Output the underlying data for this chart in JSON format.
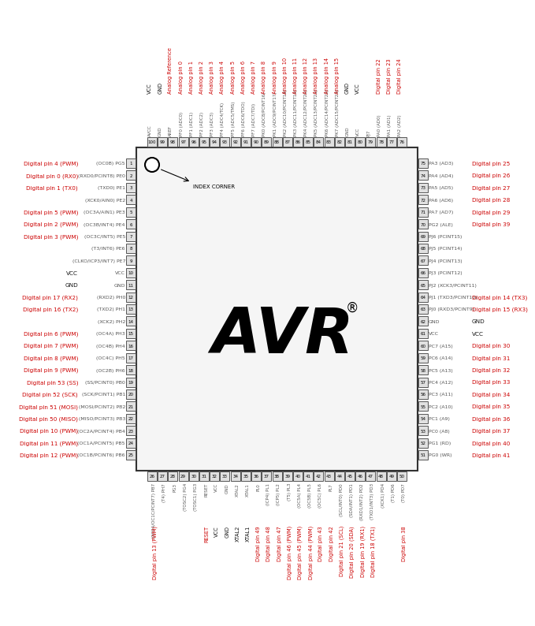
{
  "chip_color": "#f5f5f5",
  "chip_border": "#333333",
  "pin_box_color": "#e0e0e0",
  "pin_box_border": "#555555",
  "red_color": "#cc0000",
  "black_color": "#111111",
  "gray_color": "#555555",
  "top_pins": [
    {
      "num": "100",
      "inner": "AVCC",
      "outer": "VCC",
      "red": false
    },
    {
      "num": "99",
      "inner": "GND",
      "outer": "GND",
      "red": false
    },
    {
      "num": "98",
      "inner": "AREF",
      "outer": "Analog Reference",
      "red": true
    },
    {
      "num": "97",
      "inner": "PF0 (ADC0)",
      "outer": "Analog pin 0",
      "red": true
    },
    {
      "num": "96",
      "inner": "PF1 (ADC1)",
      "outer": "Analog pin 1",
      "red": true
    },
    {
      "num": "95",
      "inner": "PF2 (ADC2)",
      "outer": "Analog pin 2",
      "red": true
    },
    {
      "num": "94",
      "inner": "PF3 (ADC3)",
      "outer": "Analog pin 3",
      "red": true
    },
    {
      "num": "93",
      "inner": "PF4 (ADC4/TCK)",
      "outer": "Analog pin 4",
      "red": true
    },
    {
      "num": "92",
      "inner": "PF5 (ADC5/TMS)",
      "outer": "Analog pin 5",
      "red": true
    },
    {
      "num": "91",
      "inner": "PF6 (ADC6/TDO)",
      "outer": "Analog pin 6",
      "red": true
    },
    {
      "num": "90",
      "inner": "PF7 (ADC7/TDI)",
      "outer": "Analog pin 7",
      "red": true
    },
    {
      "num": "89",
      "inner": "PK0 (ADC8/PCINT16)",
      "outer": "Analog pin 8",
      "red": true
    },
    {
      "num": "88",
      "inner": "PK1 (ADC9/PCINT17)",
      "outer": "Analog pin 9",
      "red": true
    },
    {
      "num": "87",
      "inner": "PK2 (ADC10/PCINT18)",
      "outer": "Analog pin 10",
      "red": true
    },
    {
      "num": "86",
      "inner": "PK3 (ADC11/PCINT19)",
      "outer": "Analog pin 11",
      "red": true
    },
    {
      "num": "85",
      "inner": "PK4 (ADC12/PCINT20)",
      "outer": "Analog pin 12",
      "red": true
    },
    {
      "num": "84",
      "inner": "PK5 (ADC13/PCINT21)",
      "outer": "Analog pin 13",
      "red": true
    },
    {
      "num": "83",
      "inner": "PK6 (ADC14/PCINT22)",
      "outer": "Analog pin 14",
      "red": true
    },
    {
      "num": "82",
      "inner": "PK7 (ADC15/PCINT23)",
      "outer": "Analog pin 15",
      "red": true
    },
    {
      "num": "81",
      "inner": "GND",
      "outer": "GND",
      "red": false
    },
    {
      "num": "80",
      "inner": "VCC",
      "outer": "VCC",
      "red": false
    },
    {
      "num": "79",
      "inner": "PJ7",
      "outer": "",
      "red": false
    },
    {
      "num": "78",
      "inner": "PA0 (AD0)",
      "outer": "Digital pin 22",
      "red": true
    },
    {
      "num": "77",
      "inner": "PA1 (AD1)",
      "outer": "Digital pin 23",
      "red": true
    },
    {
      "num": "76",
      "inner": "PA2 (AD2)",
      "outer": "Digital pin 24",
      "red": true
    }
  ],
  "bottom_pins": [
    {
      "num": "26",
      "inner": "(OC0A/OC1C/PCINT7) PB7",
      "outer": "Digital pin 13 (PWM)",
      "red": true
    },
    {
      "num": "27",
      "inner": "(T4) PH7",
      "outer": "",
      "red": false
    },
    {
      "num": "28",
      "inner": "PG3",
      "outer": "",
      "red": false
    },
    {
      "num": "29",
      "inner": "(TOSC2) PG4",
      "outer": "",
      "red": false
    },
    {
      "num": "30",
      "inner": "(TOSC1) PG3",
      "outer": "",
      "red": false
    },
    {
      "num": "31",
      "inner": "RESET",
      "outer": "RESET",
      "red": true
    },
    {
      "num": "32",
      "inner": "VCC",
      "outer": "VCC",
      "red": false
    },
    {
      "num": "33",
      "inner": "GND",
      "outer": "GND",
      "red": false
    },
    {
      "num": "34",
      "inner": "XTAL2",
      "outer": "XTAL2",
      "red": false
    },
    {
      "num": "35",
      "inner": "XTAL1",
      "outer": "XTAL1",
      "red": false
    },
    {
      "num": "36",
      "inner": "PL0",
      "outer": "Digital pin 49",
      "red": true
    },
    {
      "num": "37",
      "inner": "(ICP4) PL1",
      "outer": "Digital pin 48",
      "red": true
    },
    {
      "num": "38",
      "inner": "(ICP5) PL2",
      "outer": "Digital pin 47",
      "red": true
    },
    {
      "num": "39",
      "inner": "(T5) PL3",
      "outer": "Digital pin 46 (PWM)",
      "red": true
    },
    {
      "num": "40",
      "inner": "(OC5A) PL4",
      "outer": "Digital pin 45 (PWM)",
      "red": true
    },
    {
      "num": "41",
      "inner": "(OC5B) PL5",
      "outer": "Digital pin 44 (PWM)",
      "red": true
    },
    {
      "num": "42",
      "inner": "(OC5C) PL6",
      "outer": "Digital pin 43",
      "red": true
    },
    {
      "num": "43",
      "inner": "PL7",
      "outer": "Digital pin 42",
      "red": true
    },
    {
      "num": "44",
      "inner": "(SCL/INT0) PD0",
      "outer": "Digital pin 21 (SCL)",
      "red": true
    },
    {
      "num": "45",
      "inner": "(SDA/INT1) PD1",
      "outer": "Digital pin 20 (SDA)",
      "red": true
    },
    {
      "num": "46",
      "inner": "(RXD1/INT2) PD2",
      "outer": "Digital pin 19 (RX1)",
      "red": true
    },
    {
      "num": "47",
      "inner": "(TXD1/INT3) PD3",
      "outer": "Digital pin 18 (TX1)",
      "red": true
    },
    {
      "num": "48",
      "inner": "(XCK1) PD4",
      "outer": "",
      "red": false
    },
    {
      "num": "49",
      "inner": "(T1) PD6",
      "outer": "",
      "red": false
    },
    {
      "num": "50",
      "inner": "(T0) PD7",
      "outer": "Digital pin 38",
      "red": true
    }
  ],
  "left_pins": [
    {
      "num": "1",
      "inner": "(OC0B) PG5",
      "outer": "Digital pin 4 (PWM)",
      "red": true
    },
    {
      "num": "2",
      "inner": "(RXD0/PCINT8) PE0",
      "outer": "Digital pin 0 (RX0)",
      "red": true
    },
    {
      "num": "3",
      "inner": "(TXD0) PE1",
      "outer": "Digital pin 1 (TX0)",
      "red": true
    },
    {
      "num": "4",
      "inner": "(XCK0/AIN0) PE2",
      "outer": "",
      "red": false
    },
    {
      "num": "5",
      "inner": "(OC3A/AIN1) PE3",
      "outer": "Digital pin 5 (PWM)",
      "red": true
    },
    {
      "num": "6",
      "inner": "(OC3B/INT4) PE4",
      "outer": "Digital pin 2 (PWM)",
      "red": true
    },
    {
      "num": "7",
      "inner": "(OC3C/INT5) PE5",
      "outer": "Digital pin 3 (PWM)",
      "red": true
    },
    {
      "num": "8",
      "inner": "(T3/INT6) PE6",
      "outer": "",
      "red": false
    },
    {
      "num": "9",
      "inner": "(CLKO/ICP3/INT7) PE7",
      "outer": "",
      "red": false
    },
    {
      "num": "10",
      "inner": "VCC",
      "outer": "VCC",
      "red": false
    },
    {
      "num": "11",
      "inner": "GND",
      "outer": "GND",
      "red": false
    },
    {
      "num": "12",
      "inner": "(RXD2) PH0",
      "outer": "Digital pin 17 (RX2)",
      "red": true
    },
    {
      "num": "13",
      "inner": "(TXD2) PH1",
      "outer": "Digital pin 16 (TX2)",
      "red": true
    },
    {
      "num": "14",
      "inner": "(XCK2) PH2",
      "outer": "",
      "red": false
    },
    {
      "num": "15",
      "inner": "(OC4A) PH3",
      "outer": "Digital pin 6 (PWM)",
      "red": true
    },
    {
      "num": "16",
      "inner": "(OC4B) PH4",
      "outer": "Digital pin 7 (PWM)",
      "red": true
    },
    {
      "num": "17",
      "inner": "(OC4C) PH5",
      "outer": "Digital pin 8 (PWM)",
      "red": true
    },
    {
      "num": "18",
      "inner": "(OC2B) PH6",
      "outer": "Digital pin 9 (PWM)",
      "red": true
    },
    {
      "num": "19",
      "inner": "(SS/PCINT0) PB0",
      "outer": "Digital pin 53 (SS)",
      "red": true
    },
    {
      "num": "20",
      "inner": "(SCK/PCINT1) PB1",
      "outer": "Digital pin 52 (SCK)",
      "red": true
    },
    {
      "num": "21",
      "inner": "(MOSI/PCINT2) PB2",
      "outer": "Digital pin 51 (MOSI)",
      "red": true
    },
    {
      "num": "22",
      "inner": "(MISO/PCINT3) PB3",
      "outer": "Digital pin 50 (MISO)",
      "red": true
    },
    {
      "num": "23",
      "inner": "(OC2A/PCINT4) PB4",
      "outer": "Digital pin 10 (PWM)",
      "red": true
    },
    {
      "num": "24",
      "inner": "(OC1A/PCINT5) PB5",
      "outer": "Digital pin 11 (PWM)",
      "red": true
    },
    {
      "num": "25",
      "inner": "(OC1B/PCINT6) PB6",
      "outer": "Digital pin 12 (PWM)",
      "red": true
    }
  ],
  "right_pins": [
    {
      "num": "75",
      "inner": "PA3 (AD3)",
      "outer": "Digital pin 25",
      "red": true
    },
    {
      "num": "74",
      "inner": "PA4 (AD4)",
      "outer": "Digital pin 26",
      "red": true
    },
    {
      "num": "73",
      "inner": "PA5 (AD5)",
      "outer": "Digital pin 27",
      "red": true
    },
    {
      "num": "72",
      "inner": "PA6 (AD6)",
      "outer": "Digital pin 28",
      "red": true
    },
    {
      "num": "71",
      "inner": "PA7 (AD7)",
      "outer": "Digital pin 29",
      "red": true
    },
    {
      "num": "70",
      "inner": "PG2 (ALE)",
      "outer": "Digital pin 39",
      "red": true
    },
    {
      "num": "69",
      "inner": "PJ6 (PCINT15)",
      "outer": "",
      "red": false
    },
    {
      "num": "68",
      "inner": "PJ5 (PCINT14)",
      "outer": "",
      "red": false
    },
    {
      "num": "67",
      "inner": "PJ4 (PCINT13)",
      "outer": "",
      "red": false
    },
    {
      "num": "66",
      "inner": "PJ3 (PCINT12)",
      "outer": "",
      "red": false
    },
    {
      "num": "65",
      "inner": "PJ2 (XCK3/PCINT11)",
      "outer": "",
      "red": false
    },
    {
      "num": "64",
      "inner": "PJ1 (TXD3/PCINT10)",
      "outer": "Digital pin 14 (TX3)",
      "red": true
    },
    {
      "num": "63",
      "inner": "PJ0 (RXD3/PCINT9)",
      "outer": "Digital pin 15 (RX3)",
      "red": true
    },
    {
      "num": "62",
      "inner": "GND",
      "outer": "GND",
      "red": false
    },
    {
      "num": "61",
      "inner": "VCC",
      "outer": "VCC",
      "red": false
    },
    {
      "num": "60",
      "inner": "PC7 (A15)",
      "outer": "Digital pin 30",
      "red": true
    },
    {
      "num": "59",
      "inner": "PC6 (A14)",
      "outer": "Digital pin 31",
      "red": true
    },
    {
      "num": "58",
      "inner": "PC5 (A13)",
      "outer": "Digital pin 32",
      "red": true
    },
    {
      "num": "57",
      "inner": "PC4 (A12)",
      "outer": "Digital pin 33",
      "red": true
    },
    {
      "num": "56",
      "inner": "PC3 (A11)",
      "outer": "Digital pin 34",
      "red": true
    },
    {
      "num": "55",
      "inner": "PC2 (A10)",
      "outer": "Digital pin 35",
      "red": true
    },
    {
      "num": "54",
      "inner": "PC1 (A9)",
      "outer": "Digital pin 36",
      "red": true
    },
    {
      "num": "53",
      "inner": "PC0 (A8)",
      "outer": "Digital pin 37",
      "red": true
    },
    {
      "num": "52",
      "inner": "PG1 (RD)",
      "outer": "Digital pin 40",
      "red": true
    },
    {
      "num": "51",
      "inner": "PG0 (WR)",
      "outer": "Digital pin 41",
      "red": true
    }
  ]
}
